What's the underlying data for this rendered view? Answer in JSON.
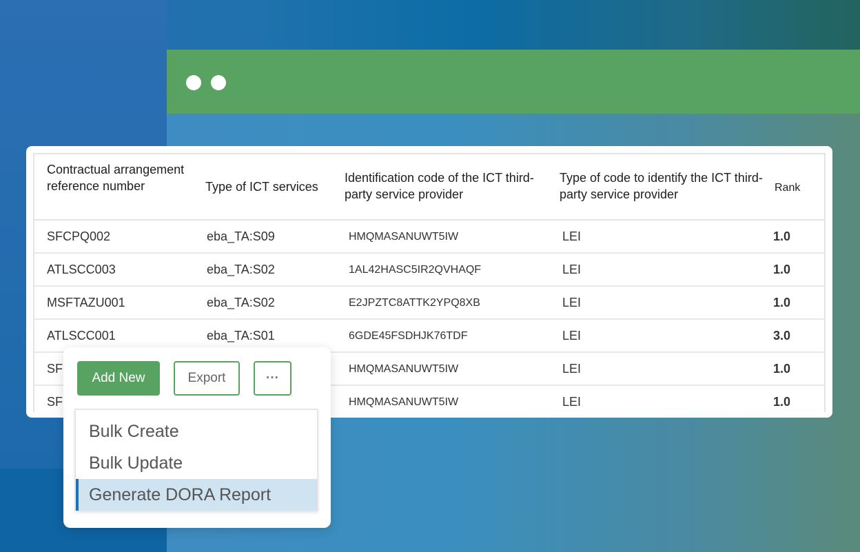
{
  "table": {
    "headers": [
      "Contractual arrangement reference number",
      "Type of ICT services",
      "Identification code of the ICT third-party service provider",
      "Type of code to identify the ICT third-party service provider",
      "Rank"
    ],
    "rows": [
      [
        "SFCPQ002",
        "eba_TA:S09",
        "HMQMASANUWT5IW",
        "LEI",
        "1.0"
      ],
      [
        "ATLSCC003",
        "eba_TA:S02",
        "1AL42HASC5IR2QVHAQF",
        "LEI",
        "1.0"
      ],
      [
        "MSFTAZU001",
        "eba_TA:S02",
        "E2JPZTC8ATTK2YPQ8XB",
        "LEI",
        "1.0"
      ],
      [
        "ATLSCC001",
        "eba_TA:S01",
        "6GDE45FSDHJK76TDF",
        "LEI",
        "3.0"
      ],
      [
        "SF",
        "",
        "HMQMASANUWT5IW",
        "LEI",
        "1.0"
      ],
      [
        "SF",
        "",
        "HMQMASANUWT5IW",
        "LEI",
        "1.0"
      ]
    ]
  },
  "toolbar": {
    "add_new": "Add New",
    "export": "Export",
    "more": "···"
  },
  "menu": {
    "items": [
      "Bulk Create",
      "Bulk Update",
      "Generate DORA Report"
    ],
    "selected": 2
  },
  "colors": {
    "green": "#58a262",
    "accent": "#1a72b8",
    "highlight": "#d0e3f1"
  }
}
